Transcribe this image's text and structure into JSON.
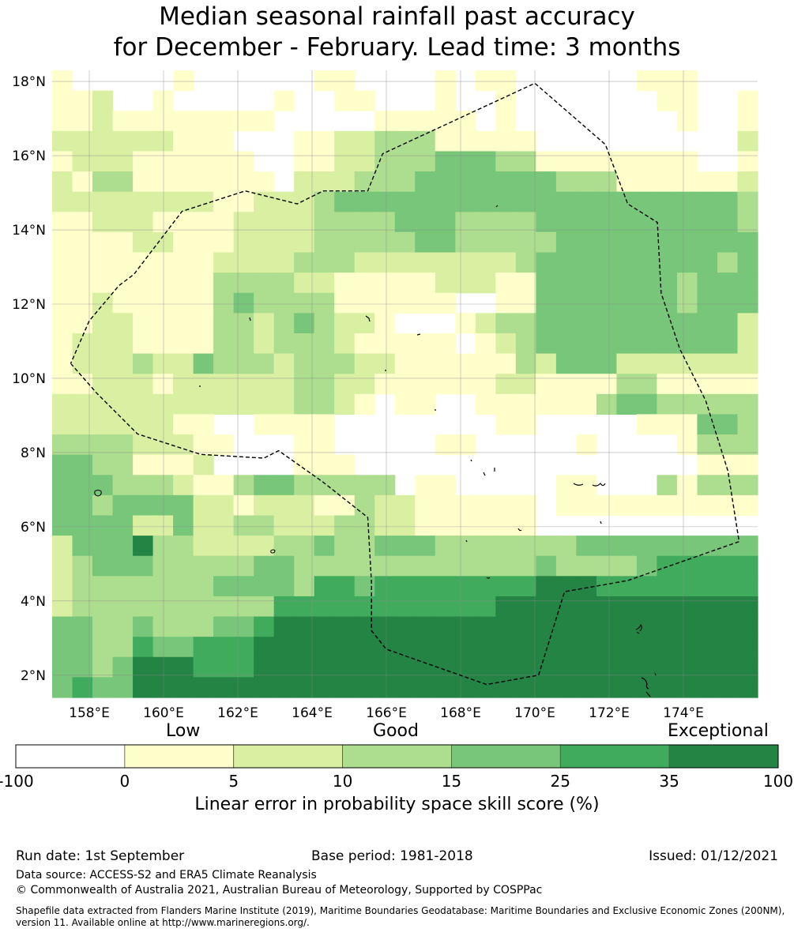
{
  "title": {
    "line1": "Median seasonal rainfall past accuracy",
    "line2": "for December - February. Lead time: 3 months"
  },
  "map": {
    "lat_labels": [
      "18°N",
      "16°N",
      "14°N",
      "12°N",
      "10°N",
      "8°N",
      "6°N",
      "4°N",
      "2°N"
    ],
    "lat_values": [
      18,
      16,
      14,
      12,
      10,
      8,
      6,
      4,
      2
    ],
    "lon_labels": [
      "158°E",
      "160°E",
      "162°E",
      "164°E",
      "166°E",
      "168°E",
      "170°E",
      "172°E",
      "174°E"
    ],
    "lon_values": [
      158,
      160,
      162,
      164,
      166,
      168,
      170,
      172,
      174
    ],
    "extent": {
      "lon_min": 157,
      "lon_max": 176,
      "lat_min": 1.4,
      "lat_max": 18.3
    },
    "grid_columns_per_degree": 1.2,
    "grid_rows_per_degree": 1.8,
    "grid_description_categories": "0=<0, 1=0-5, 2=5-10, 3=10-15, 4=15-25, 5=25-35, 6=35-100",
    "grid": [
      "10000010000001100001011000000111000",
      "11200100000100110001001000000011001",
      "11211111111000001111101000000001001",
      "22222211100011223331111100000000002",
      "12221111110011223334443311111111001",
      "21331111111022233344444443331111112",
      "22222222112223444444444444444444443",
      "11222111122223333444333344444444443",
      "11112211122223333344333334444444444",
      "11111111222233322222222344444444434",
      "11111111333322111112221144444443444",
      "11211111343333111111001144444443444",
      "11221111332343221000123344444444442",
      "12221111332333211111012344444444442",
      "12223224333233322111111324442222222",
      "11222122222233221111112211113311111",
      "22222222222233210110011111134433333",
      "22222211001111000000001100000111443",
      "33332221100011000001100000100001333",
      "44331112000011100000000000000000111",
      "44433321134433333011000001100031333",
      "44344442212221132211111101111111111",
      "44442242233222332211111100000000000",
      "24446332222334334443333333444444444",
      "23444333334433333333333343333455555",
      "23333333444435545555555566655555555",
      "23333333333555555555556666666666666",
      "44334333445666666666666666666666666",
      "44335445556666666666666666666666666",
      "44346665556666666666666666666666666",
      "45446666666666666666666666666666666"
    ],
    "boundary_coords": [
      [
        157.5,
        10.4
      ],
      [
        158.2,
        9.6
      ],
      [
        159.3,
        8.5
      ],
      [
        161,
        7.95
      ],
      [
        162.7,
        7.85
      ],
      [
        163.1,
        8.05
      ],
      [
        164.3,
        7.2
      ],
      [
        165.5,
        6.25
      ],
      [
        165.6,
        4.5
      ],
      [
        165.6,
        3.2
      ],
      [
        166,
        2.7
      ],
      [
        168.7,
        1.75
      ],
      [
        170.1,
        2
      ],
      [
        170.8,
        4.25
      ],
      [
        172.5,
        4.55
      ],
      [
        175.5,
        5.6
      ],
      [
        175.2,
        7.5
      ],
      [
        174.6,
        9.4
      ],
      [
        173.9,
        10.8
      ],
      [
        173.4,
        12.3
      ],
      [
        173.3,
        14.2
      ],
      [
        172.5,
        14.7
      ],
      [
        171.9,
        16.3
      ],
      [
        170,
        17.95
      ],
      [
        165.9,
        16.05
      ],
      [
        165.5,
        15.05
      ],
      [
        164.3,
        15.05
      ],
      [
        163.6,
        14.7
      ],
      [
        162.2,
        15.05
      ],
      [
        160.5,
        14.5
      ],
      [
        159.2,
        12.8
      ],
      [
        158.8,
        12.5
      ],
      [
        158,
        11.55
      ],
      [
        157.5,
        10.4
      ]
    ]
  },
  "colorbar": {
    "colors": [
      "#ffffff",
      "#ffffcc",
      "#d9f0a3",
      "#addd8e",
      "#78c679",
      "#41ab5d",
      "#238443"
    ],
    "tick_labels": [
      "-100",
      "0",
      "5",
      "10",
      "15",
      "25",
      "35",
      "100"
    ],
    "category_labels": {
      "low": "Low",
      "good": "Good",
      "exceptional": "Exceptional"
    },
    "xlabel": "Linear error in probability space skill score (%)"
  },
  "footer": {
    "run_date": "Run date: 1st September",
    "base_period": "Base period: 1981-2018",
    "issued": "Issued: 01/12/2021",
    "data_source": "Data source: ACCESS-S2 and ERA5 Climate Reanalysis",
    "copyright": "© Commonwealth of Australia 2021, Australian Bureau of Meteorology, Supported by COSPPac",
    "shapefile_line1": "Shapefile data extracted from Flanders Marine Institute (2019), Maritime Boundaries Geodatabase: Maritime Boundaries and Exclusive Economic Zones (200NM),",
    "shapefile_line2": "version 11. Available online at http://www.marineregions.org/."
  }
}
